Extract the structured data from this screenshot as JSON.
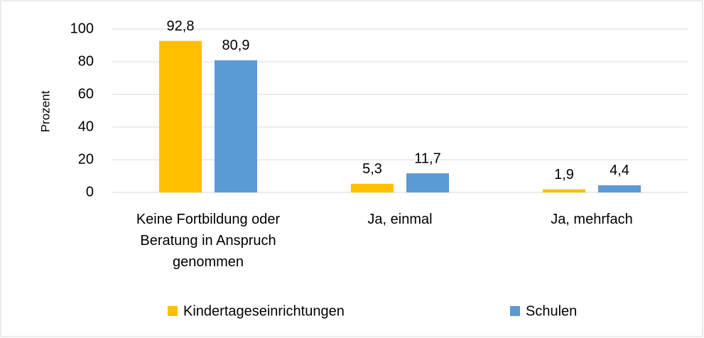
{
  "chart_data": {
    "type": "bar",
    "y_label": "Prozent",
    "categories": [
      "Keine Fortbildung oder Beratung in Anspruch genommen",
      "Ja, einmal",
      "Ja, mehrfach"
    ],
    "series": [
      {
        "name": "Kindertageseinrichtungen",
        "color": "#ffc000",
        "values": [
          92.8,
          5.3,
          1.9
        ],
        "value_labels": [
          "92,8",
          "5,3",
          "1,9"
        ]
      },
      {
        "name": "Schulen",
        "color": "#5b9bd5",
        "values": [
          80.9,
          11.7,
          4.4
        ],
        "value_labels": [
          "80,9",
          "11,7",
          "4,4"
        ]
      }
    ],
    "ylim": [
      0,
      100
    ],
    "yticks": [
      0,
      20,
      40,
      60,
      80,
      100
    ],
    "grid": true,
    "legend": "bottom"
  }
}
